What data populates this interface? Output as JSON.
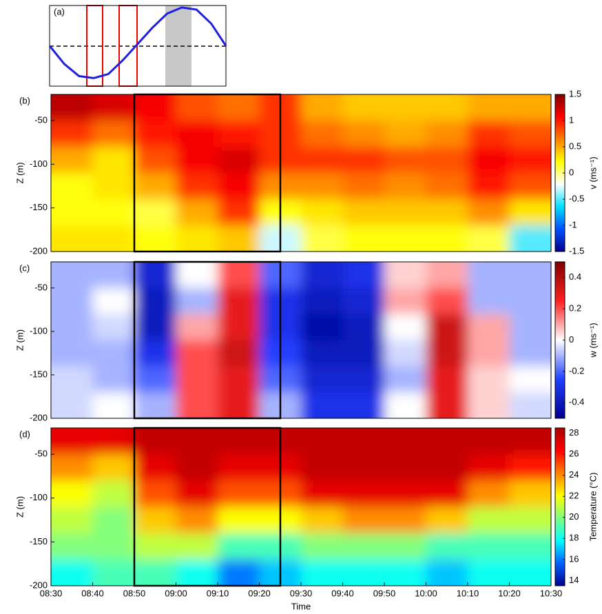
{
  "chart_data": [
    {
      "type": "line",
      "label": "(a)",
      "categories": [
        null,
        null,
        null,
        null,
        null,
        null,
        null,
        null,
        null,
        null,
        null,
        null,
        null
      ],
      "values": [
        0,
        -0.45,
        -0.75,
        -0.8,
        -0.7,
        -0.35,
        0.05,
        0.45,
        0.8,
        0.95,
        0.9,
        0.55,
        0
      ],
      "color": "#1f1fe0",
      "ylim": [
        -1,
        1
      ]
    },
    {
      "type": "heatmap",
      "label": "(b)",
      "ylabel": "Z (m)",
      "colorbar_label": "v (ms⁻¹)",
      "x": [
        515,
        525,
        535,
        545,
        555,
        565,
        575,
        585,
        595,
        605,
        615,
        625
      ],
      "y": [
        -35,
        -65,
        -95,
        -125,
        -155,
        -185
      ],
      "z": [
        [
          1.3,
          1.2,
          1.1,
          0.8,
          0.7,
          0.9,
          0.5,
          0.4,
          0.4,
          0.4,
          0.5,
          0.5
        ],
        [
          0.9,
          0.7,
          1.0,
          1.1,
          1.0,
          0.9,
          0.7,
          0.6,
          0.5,
          0.6,
          0.9,
          0.8
        ],
        [
          0.5,
          0.3,
          0.8,
          1.1,
          1.2,
          0.9,
          0.9,
          0.9,
          0.8,
          0.8,
          1.1,
          1.0
        ],
        [
          0.2,
          0.3,
          0.5,
          0.9,
          1.1,
          0.6,
          0.6,
          0.7,
          0.6,
          0.7,
          1.0,
          0.8
        ],
        [
          0.2,
          0.2,
          0.1,
          0.5,
          0.9,
          0.2,
          0.3,
          0.4,
          0.4,
          0.4,
          0.6,
          0.3
        ],
        [
          0.3,
          0.3,
          0.2,
          0.3,
          0.4,
          -0.3,
          0.1,
          0.2,
          0.2,
          0.2,
          0.1,
          -0.5
        ]
      ],
      "colormap": [
        "#00008f",
        "#0050ff",
        "#00e0ff",
        "#ffffff",
        "#ffff00",
        "#ff8000",
        "#ff0000",
        "#800000"
      ],
      "xlim": [
        510,
        630
      ],
      "ylim": [
        -200,
        -20
      ],
      "yticks": [
        -50,
        -100,
        -150,
        -200
      ],
      "clim": [
        -1.5,
        1.5
      ],
      "cticks": [
        -1.5,
        -1,
        -0.5,
        0,
        0.5,
        1,
        1.5
      ]
    },
    {
      "type": "heatmap",
      "label": "(c)",
      "ylabel": "Z (m)",
      "colorbar_label": "w (ms⁻¹)",
      "x": [
        515,
        525,
        535,
        545,
        555,
        565,
        575,
        585,
        595,
        605,
        615,
        625
      ],
      "y": [
        -35,
        -65,
        -95,
        -125,
        -155,
        -185
      ],
      "z": [
        [
          -0.1,
          -0.1,
          -0.35,
          0.0,
          0.2,
          -0.2,
          -0.35,
          -0.3,
          0.05,
          0.1,
          -0.1,
          -0.1
        ],
        [
          -0.1,
          0.0,
          -0.4,
          -0.1,
          0.3,
          -0.3,
          -0.4,
          -0.35,
          0.1,
          0.2,
          -0.1,
          -0.1
        ],
        [
          -0.1,
          -0.05,
          -0.4,
          0.1,
          0.3,
          -0.3,
          -0.45,
          -0.4,
          0.0,
          0.35,
          0.1,
          -0.1
        ],
        [
          -0.1,
          -0.1,
          -0.3,
          0.2,
          0.35,
          -0.25,
          -0.4,
          -0.4,
          -0.05,
          0.35,
          0.1,
          -0.1
        ],
        [
          -0.05,
          -0.1,
          -0.2,
          0.2,
          0.3,
          -0.2,
          -0.35,
          -0.35,
          -0.1,
          0.3,
          0.05,
          0.0
        ],
        [
          -0.05,
          0.0,
          -0.1,
          0.2,
          0.3,
          -0.1,
          -0.3,
          -0.3,
          0.0,
          0.3,
          0.05,
          -0.05
        ]
      ],
      "colormap": [
        "#00008f",
        "#2040ff",
        "#ffffff",
        "#ff2020",
        "#800000"
      ],
      "xlim": [
        510,
        630
      ],
      "ylim": [
        -200,
        -20
      ],
      "yticks": [
        -50,
        -100,
        -150,
        -200
      ],
      "clim": [
        -0.5,
        0.5
      ],
      "cticks": [
        -0.4,
        -0.2,
        0,
        0.2,
        0.4
      ]
    },
    {
      "type": "heatmap",
      "label": "(d)",
      "ylabel": "Z (m)",
      "colorbar_label": "Temperature (°C)",
      "xlabel": "Time",
      "x": [
        515,
        525,
        535,
        545,
        555,
        565,
        575,
        585,
        595,
        605,
        615,
        625
      ],
      "y": [
        -35,
        -65,
        -95,
        -125,
        -155,
        -185
      ],
      "z": [
        [
          27,
          27,
          28,
          28,
          28,
          28,
          28,
          28,
          28,
          28,
          28,
          28
        ],
        [
          24,
          23,
          27,
          28,
          27,
          27,
          28,
          28,
          28,
          28,
          27,
          26
        ],
        [
          22,
          21,
          25,
          27,
          25,
          25,
          27,
          27,
          27,
          27,
          24,
          23
        ],
        [
          21,
          20,
          23,
          24,
          22,
          22,
          23,
          24,
          24,
          23,
          21,
          21
        ],
        [
          20,
          20,
          21,
          21,
          19,
          19,
          20,
          20,
          20,
          19,
          19,
          19
        ],
        [
          18,
          19,
          19,
          18,
          16,
          17,
          18,
          18,
          18,
          17,
          18,
          18
        ]
      ],
      "colormap": [
        "#00008f",
        "#0060ff",
        "#00ffff",
        "#80ff80",
        "#ffff00",
        "#ff8000",
        "#ff0000",
        "#b00000"
      ],
      "xlim": [
        510,
        630
      ],
      "ylim": [
        -200,
        -20
      ],
      "yticks": [
        -50,
        -100,
        -150,
        -200
      ],
      "xticks": [
        {
          "value": 510,
          "label": "08:30"
        },
        {
          "value": 520,
          "label": "08:40"
        },
        {
          "value": 530,
          "label": "08:50"
        },
        {
          "value": 540,
          "label": "09:00"
        },
        {
          "value": 550,
          "label": "09:10"
        },
        {
          "value": 560,
          "label": "09:20"
        },
        {
          "value": 570,
          "label": "09:30"
        },
        {
          "value": 580,
          "label": "09:40"
        },
        {
          "value": 590,
          "label": "09:50"
        },
        {
          "value": 600,
          "label": "10:00"
        },
        {
          "value": 610,
          "label": "10:10"
        },
        {
          "value": 620,
          "label": "10:20"
        },
        {
          "value": 630,
          "label": "10:30"
        }
      ],
      "clim": [
        13.5,
        28.5
      ],
      "cticks": [
        14,
        16,
        18,
        20,
        22,
        24,
        26,
        28
      ]
    }
  ]
}
